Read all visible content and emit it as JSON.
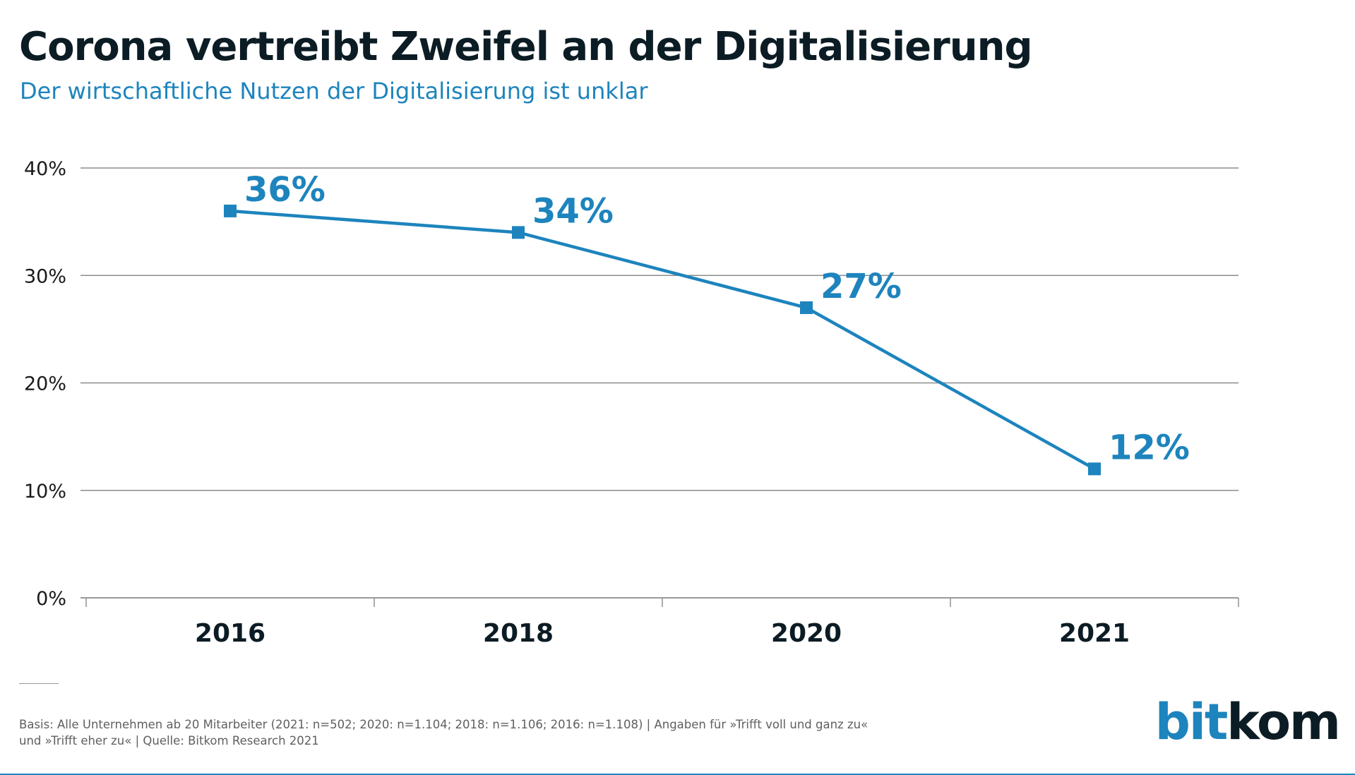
{
  "header": {
    "title": "Corona vertreibt Zweifel an der Digitalisierung",
    "subtitle": "Der wirtschaftliche Nutzen der Digitalisierung ist unklar"
  },
  "chart_data": {
    "type": "line",
    "categories": [
      "2016",
      "2018",
      "2020",
      "2021"
    ],
    "series": [
      {
        "values": [
          36,
          34,
          27,
          12
        ],
        "data_labels": [
          "36%",
          "34%",
          "27%",
          "12%"
        ]
      }
    ],
    "ylim": [
      0,
      40
    ],
    "yticks": [
      0,
      10,
      20,
      30,
      40
    ],
    "ytick_labels": [
      "0%",
      "10%",
      "20%",
      "30%",
      "40%"
    ],
    "xlabel": "",
    "ylabel": "",
    "grid": true,
    "colors": {
      "line": "#1d84bd",
      "grid": "#8c8c8c",
      "tick_text": "#1a1a1a",
      "data_label": "#1d84bd"
    }
  },
  "footer": {
    "note_line1": "Basis: Alle Unternehmen ab 20 Mitarbeiter (2021: n=502; 2020: n=1.104; 2018: n=1.106; 2016: n=1.108) | Angaben für »Trifft voll und ganz zu«",
    "note_line2": "und  »Trifft eher zu« | Quelle: Bitkom Research 2021",
    "brand_part1": "bit",
    "brand_part2": "kom"
  }
}
